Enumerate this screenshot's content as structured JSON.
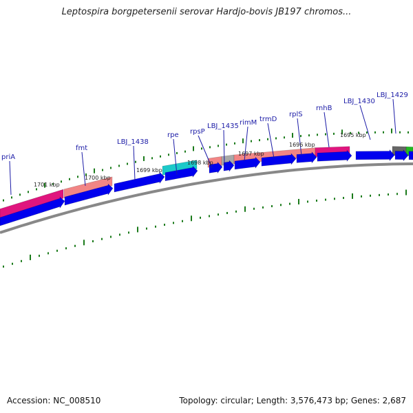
{
  "title": "Leptospira borgpetersenii serovar Hardjo-bovis JB197 chromos...",
  "footer": {
    "accession": "Accession: NC_008510",
    "topology": "Topology: circular; Length: 3,576,473 bp; Genes: 2,687"
  },
  "colors": {
    "cds": "#0000ee",
    "gene_magenta": "#e0157e",
    "gene_salmon": "#f28585",
    "gene_cyan": "#1cc9c9",
    "gene_gray": "#a8a8a8",
    "gene_dark": "#666666",
    "gene_green": "#22b922",
    "backbone": "#888888",
    "ticks": "#1a7a1a",
    "label": "#1a1aa6"
  },
  "gene_labels": [
    "priA",
    "fmt",
    "LBJ_1438",
    "rpe",
    "rpsP",
    "LBJ_1435",
    "rimM",
    "trmD",
    "rplS",
    "rnhB",
    "LBJ_1430",
    "LBJ_1429"
  ],
  "kbp_labels": [
    "1701 kbp",
    "1700 kbp",
    "1699 kbp",
    "1698 kbp",
    "1697 kbp",
    "1696 kbp",
    "1695 kbp"
  ]
}
